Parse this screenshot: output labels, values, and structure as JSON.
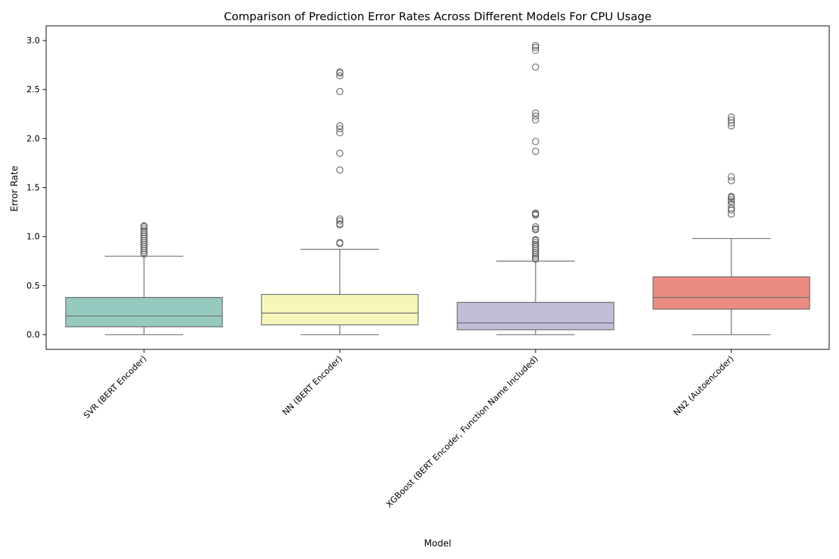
{
  "chart_data": {
    "type": "box",
    "title": "Comparison of Prediction Error Rates Across Different Models For CPU Usage",
    "xlabel": "Model",
    "ylabel": "Error Rate",
    "ylim": [
      -0.15,
      3.15
    ],
    "yticks": [
      0.0,
      0.5,
      1.0,
      1.5,
      2.0,
      2.5,
      3.0
    ],
    "ytick_labels": [
      "0.0",
      "0.5",
      "1.0",
      "1.5",
      "2.0",
      "2.5",
      "3.0"
    ],
    "grid": false,
    "categories": [
      "SVR (BERT Encoder)",
      "NN (BERT Encoder)",
      "XGBoost (BERT Encoder, Function Name Included)",
      "NN2 (Autoencoder)"
    ],
    "boxes": [
      {
        "category": "SVR (BERT Encoder)",
        "color": "#96cac0",
        "whisker_low": 0.0,
        "q1": 0.08,
        "median": 0.19,
        "q3": 0.38,
        "whisker_high": 0.8,
        "outliers": [
          0.82,
          0.84,
          0.86,
          0.88,
          0.9,
          0.92,
          0.94,
          0.96,
          0.98,
          1.0,
          1.02,
          1.04,
          1.06,
          1.08,
          1.1,
          1.11
        ]
      },
      {
        "category": "NN (BERT Encoder)",
        "color": "#f6f6bb",
        "whisker_low": 0.0,
        "q1": 0.1,
        "median": 0.22,
        "q3": 0.41,
        "whisker_high": 0.87,
        "outliers": [
          0.93,
          0.94,
          1.12,
          1.13,
          1.16,
          1.18,
          1.68,
          1.85,
          2.06,
          2.1,
          2.13,
          2.48,
          2.64,
          2.67,
          2.68
        ]
      },
      {
        "category": "XGBoost (BERT Encoder, Function Name Included)",
        "color": "#c2bed9",
        "whisker_low": 0.0,
        "q1": 0.05,
        "median": 0.12,
        "q3": 0.33,
        "whisker_high": 0.75,
        "outliers": [
          0.77,
          0.78,
          0.8,
          0.82,
          0.84,
          0.86,
          0.88,
          0.9,
          0.92,
          0.94,
          0.96,
          0.97,
          1.07,
          1.08,
          1.1,
          1.22,
          1.23,
          1.24,
          1.87,
          1.97,
          2.19,
          2.23,
          2.26,
          2.73,
          2.9,
          2.93,
          2.95
        ]
      },
      {
        "category": "NN2 (Autoencoder)",
        "color": "#eb8c82",
        "whisker_low": 0.0,
        "q1": 0.26,
        "median": 0.38,
        "q3": 0.59,
        "whisker_high": 0.98,
        "outliers": [
          1.23,
          1.27,
          1.29,
          1.33,
          1.36,
          1.38,
          1.4,
          1.41,
          1.57,
          1.61,
          2.13,
          2.16,
          2.19,
          2.22
        ]
      }
    ]
  }
}
